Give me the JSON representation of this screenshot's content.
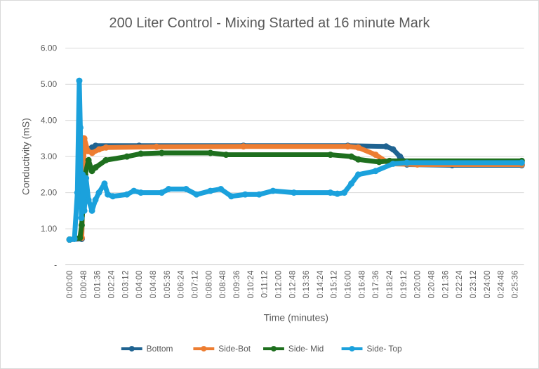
{
  "chart_data": {
    "type": "line",
    "title": "200 Liter Control - Mixing Started at 16 minute Mark",
    "xlabel": "Time (minutes)",
    "ylabel": "Conductivity (mS)",
    "ylim": [
      0,
      6
    ],
    "xlim_minutes": [
      0,
      26
    ],
    "grid": true,
    "legend": "bottom",
    "y_ticks": [
      "-",
      "1.00",
      "2.00",
      "3.00",
      "4.00",
      "5.00",
      "6.00"
    ],
    "x_ticks": [
      "0:00:00",
      "0:00:48",
      "0:01:36",
      "0:02:24",
      "0:03:12",
      "0:04:00",
      "0:04:48",
      "0:05:36",
      "0:06:24",
      "0:07:12",
      "0:08:00",
      "0:08:48",
      "0:09:36",
      "0:10:24",
      "0:11:12",
      "0:12:00",
      "0:12:48",
      "0:13:36",
      "0:14:24",
      "0:15:12",
      "0:16:00",
      "0:16:48",
      "0:17:36",
      "0:18:24",
      "0:19:12",
      "0:20:00",
      "0:20:48",
      "0:21:36",
      "0:22:24",
      "0:23:12",
      "0:24:00",
      "0:24:48",
      "0:25:36"
    ],
    "series": [
      {
        "name": "Bottom",
        "color": "#1f6391",
        "points": [
          [
            0,
            0.7
          ],
          [
            0.7,
            0.72
          ],
          [
            0.8,
            3.5
          ],
          [
            1.0,
            3.2
          ],
          [
            1.3,
            3.25
          ],
          [
            1.5,
            3.3
          ],
          [
            4,
            3.3
          ],
          [
            10,
            3.3
          ],
          [
            16,
            3.3
          ],
          [
            18.2,
            3.28
          ],
          [
            18.6,
            3.2
          ],
          [
            19.0,
            3.0
          ],
          [
            19.4,
            2.78
          ],
          [
            22,
            2.76
          ],
          [
            26,
            2.76
          ]
        ]
      },
      {
        "name": "Side-Bot",
        "color": "#ed7d31",
        "points": [
          [
            0,
            0.7
          ],
          [
            0.7,
            0.75
          ],
          [
            0.85,
            3.5
          ],
          [
            1.05,
            3.15
          ],
          [
            1.3,
            3.1
          ],
          [
            1.7,
            3.2
          ],
          [
            2.1,
            3.25
          ],
          [
            5,
            3.27
          ],
          [
            10,
            3.28
          ],
          [
            16,
            3.28
          ],
          [
            16.6,
            3.25
          ],
          [
            17.6,
            3.05
          ],
          [
            18.4,
            2.8
          ],
          [
            20,
            2.78
          ],
          [
            26,
            2.78
          ]
        ]
      },
      {
        "name": "Side- Mid",
        "color": "#1e6f1e",
        "points": [
          [
            0,
            0.7
          ],
          [
            0.6,
            0.75
          ],
          [
            0.7,
            1.1
          ],
          [
            0.9,
            2.5
          ],
          [
            1.09,
            2.9
          ],
          [
            1.29,
            2.6
          ],
          [
            1.5,
            2.7
          ],
          [
            2.09,
            2.9
          ],
          [
            3.3,
            3.0
          ],
          [
            4.1,
            3.08
          ],
          [
            5.3,
            3.1
          ],
          [
            8.1,
            3.1
          ],
          [
            9,
            3.05
          ],
          [
            15,
            3.05
          ],
          [
            16.2,
            3.0
          ],
          [
            16.6,
            2.92
          ],
          [
            17.8,
            2.85
          ],
          [
            18.4,
            2.88
          ],
          [
            26,
            2.88
          ]
        ]
      },
      {
        "name": "Side- Top",
        "color": "#1ba1dc",
        "points": [
          [
            0,
            0.7
          ],
          [
            0.28,
            0.72
          ],
          [
            0.45,
            2.0
          ],
          [
            0.56,
            5.1
          ],
          [
            0.62,
            3.8
          ],
          [
            0.68,
            1.3
          ],
          [
            0.75,
            2.5
          ],
          [
            0.85,
            1.5
          ],
          [
            0.95,
            2.4
          ],
          [
            1.09,
            1.8
          ],
          [
            1.29,
            1.5
          ],
          [
            1.49,
            1.8
          ],
          [
            1.69,
            2.0
          ],
          [
            2.01,
            2.25
          ],
          [
            2.2,
            1.95
          ],
          [
            2.49,
            1.9
          ],
          [
            3.3,
            1.95
          ],
          [
            3.7,
            2.05
          ],
          [
            4.1,
            2.0
          ],
          [
            5.3,
            2.0
          ],
          [
            5.7,
            2.1
          ],
          [
            6.7,
            2.1
          ],
          [
            7.3,
            1.95
          ],
          [
            8.1,
            2.05
          ],
          [
            8.7,
            2.1
          ],
          [
            9.3,
            1.9
          ],
          [
            10.1,
            1.95
          ],
          [
            10.9,
            1.95
          ],
          [
            11.7,
            2.05
          ],
          [
            12.9,
            2.0
          ],
          [
            15.0,
            2.0
          ],
          [
            15.4,
            1.97
          ],
          [
            15.8,
            2.0
          ],
          [
            16.2,
            2.25
          ],
          [
            16.6,
            2.5
          ],
          [
            17.6,
            2.6
          ],
          [
            18.6,
            2.8
          ],
          [
            19.4,
            2.83
          ],
          [
            26,
            2.83
          ]
        ]
      }
    ]
  }
}
